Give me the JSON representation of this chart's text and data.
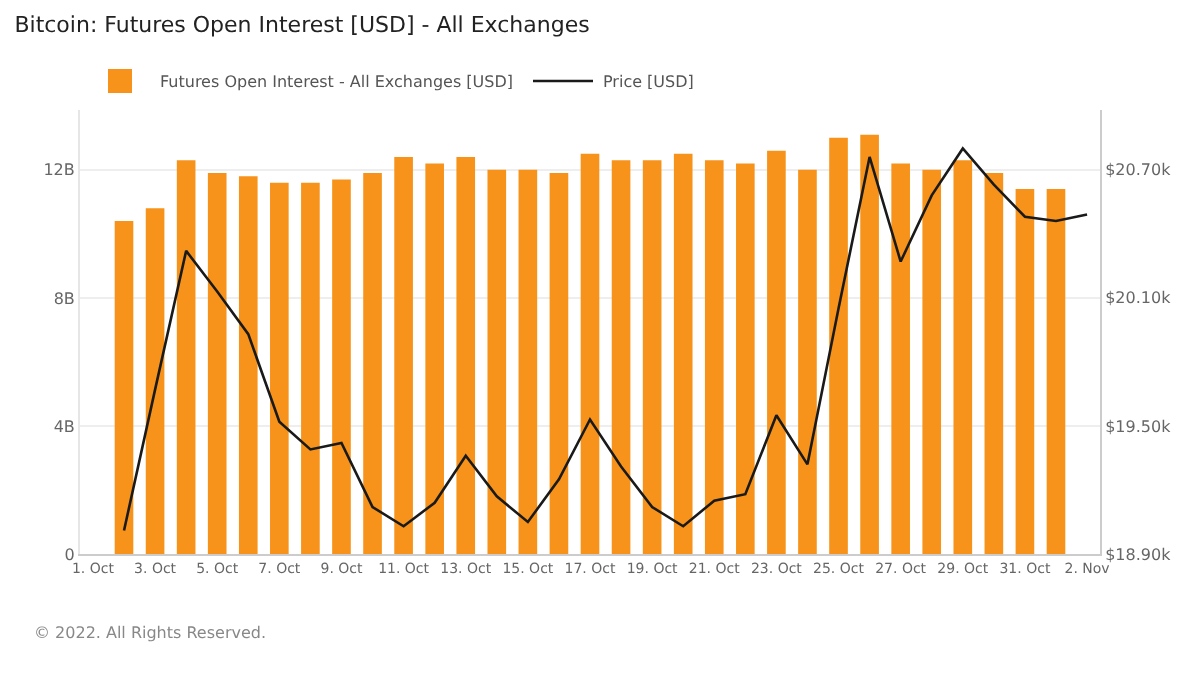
{
  "chart_data": {
    "type": "bar",
    "title": "Bitcoin: Futures Open Interest [USD] - All Exchanges",
    "annotations": [
      "© 2022. All Rights Reserved."
    ],
    "x": [
      "--10-02",
      "--10-03",
      "--10-04",
      "--10-05",
      "--10-06",
      "--10-07",
      "--10-08",
      "--10-09",
      "--10-10",
      "--10-11",
      "--10-12",
      "--10-13",
      "--10-14",
      "--10-15",
      "--10-16",
      "--10-17",
      "--10-18",
      "--10-19",
      "--10-20",
      "--10-21",
      "--10-22",
      "--10-23",
      "--10-24",
      "--10-25",
      "--10-26",
      "--10-27",
      "--10-28",
      "--10-29",
      "--10-30",
      "--10-31",
      "--11-01"
    ],
    "series": [
      {
        "name": "Futures Open Interest - All Exchanges [USD]",
        "color": "#f7931a",
        "values": [
          10400000000.0,
          10800000000.0,
          12300000000.0,
          11900000000.0,
          11800000000.0,
          11600000000.0,
          11600000000.0,
          11700000000.0,
          11900000000.0,
          12400000000.0,
          12200000000.0,
          12400000000.0,
          12000000000.0,
          12000000000.0,
          11900000000.0,
          12500000000.0,
          12300000000.0,
          12300000000.0,
          12500000000.0,
          12300000000.0,
          12200000000.0,
          12600000000.0,
          12000000000.0,
          13000000000.0,
          13100000000.0,
          12200000000.0,
          12000000000.0,
          12300000000.0,
          11900000000.0,
          11400000000.0,
          11400000000.0
        ]
      },
      {
        "name": "Price [USD]",
        "type": "line",
        "axis": "y2",
        "color": "#1a1a1a",
        "x": [
          "--10-02",
          "--10-03",
          "--10-04",
          "--10-05",
          "--10-06",
          "--10-07",
          "--10-08",
          "--10-09",
          "--10-10",
          "--10-11",
          "--10-12",
          "--10-13",
          "--10-14",
          "--10-15",
          "--10-16",
          "--10-17",
          "--10-18",
          "--10-19",
          "--10-20",
          "--10-21",
          "--10-22",
          "--10-23",
          "--10-24",
          "--10-25",
          "--10-26",
          "--10-27",
          "--10-28",
          "--10-29",
          "--10-30",
          "--10-31",
          "--11-01",
          "--11-02"
        ],
        "values": [
          19010,
          19670,
          20320,
          20130,
          19930,
          19520,
          19390,
          19420,
          19120,
          19030,
          19140,
          19360,
          19170,
          19050,
          19250,
          19530,
          19310,
          19120,
          19030,
          19150,
          19180,
          19550,
          19320,
          20050,
          20760,
          20270,
          20580,
          20800,
          20630,
          20480,
          20460,
          20490
        ]
      }
    ],
    "xlim": [
      "--09-30T14:00",
      "--11-02T10:00"
    ],
    "xticks": [
      {
        "value": "--10-01",
        "label": "1. Oct"
      },
      {
        "value": "--10-03",
        "label": "3. Oct"
      },
      {
        "value": "--10-05",
        "label": "5. Oct"
      },
      {
        "value": "--10-07",
        "label": "7. Oct"
      },
      {
        "value": "--10-09",
        "label": "9. Oct"
      },
      {
        "value": "--10-11",
        "label": "11. Oct"
      },
      {
        "value": "--10-13",
        "label": "13. Oct"
      },
      {
        "value": "--10-15",
        "label": "15. Oct"
      },
      {
        "value": "--10-17",
        "label": "17. Oct"
      },
      {
        "value": "--10-19",
        "label": "19. Oct"
      },
      {
        "value": "--10-21",
        "label": "21. Oct"
      },
      {
        "value": "--10-23",
        "label": "23. Oct"
      },
      {
        "value": "--10-25",
        "label": "25. Oct"
      },
      {
        "value": "--10-27",
        "label": "27. Oct"
      },
      {
        "value": "--10-29",
        "label": "29. Oct"
      },
      {
        "value": "--10-31",
        "label": "31. Oct"
      },
      {
        "value": "--11-02",
        "label": "2. Nov"
      }
    ],
    "ylim": [
      0,
      13870000000.0
    ],
    "yticks": [
      0,
      {
        "value": 4000000000.0,
        "label": "4B"
      },
      {
        "value": 8000000000.0,
        "label": "8B"
      },
      {
        "value": 12000000000.0,
        "label": "12B"
      }
    ],
    "y2lim": [
      18900,
      20980
    ],
    "y2ticks": [
      {
        "value": 18900,
        "label": "$18.90k"
      },
      {
        "value": 19500,
        "label": "$19.50k"
      },
      {
        "value": 20100,
        "label": "$20.10k"
      },
      {
        "value": 20700,
        "label": "$20.70k"
      }
    ],
    "grid": "y",
    "legend": "top left",
    "marker": "none",
    "line_style": "solid"
  }
}
